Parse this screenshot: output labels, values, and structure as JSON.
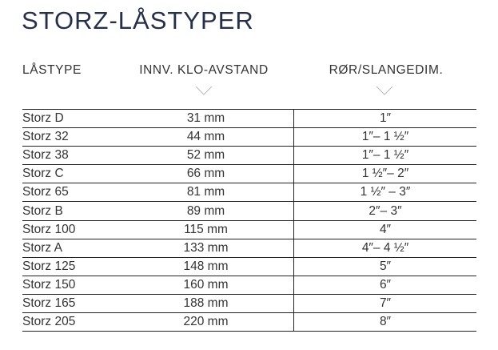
{
  "title": "STORZ-LÅSTYPER",
  "headers": [
    "LÅSTYPE",
    "INNV. KLO-AVSTAND",
    "RØR/SLANGEDIM."
  ],
  "rows": [
    [
      "Storz D",
      "31 mm",
      "1″"
    ],
    [
      "Storz 32",
      "44 mm",
      "1″– 1 ½″"
    ],
    [
      "Storz 38",
      "52 mm",
      "1″– 1 ½″"
    ],
    [
      "Storz C",
      "66 mm",
      "1 ½″– 2″"
    ],
    [
      "Storz 65",
      "81 mm",
      "1 ½″ – 3″"
    ],
    [
      "Storz B",
      "89 mm",
      "2″– 3″"
    ],
    [
      "Storz 100",
      "115 mm",
      "4″"
    ],
    [
      "Storz A",
      "133 mm",
      "4″– 4 ½″"
    ],
    [
      "Storz 125",
      "148 mm",
      "5″"
    ],
    [
      "Storz 150",
      "160 mm",
      "6″"
    ],
    [
      "Storz 165",
      "188 mm",
      "7″"
    ],
    [
      "Storz 205",
      "220 mm",
      "8″"
    ]
  ]
}
